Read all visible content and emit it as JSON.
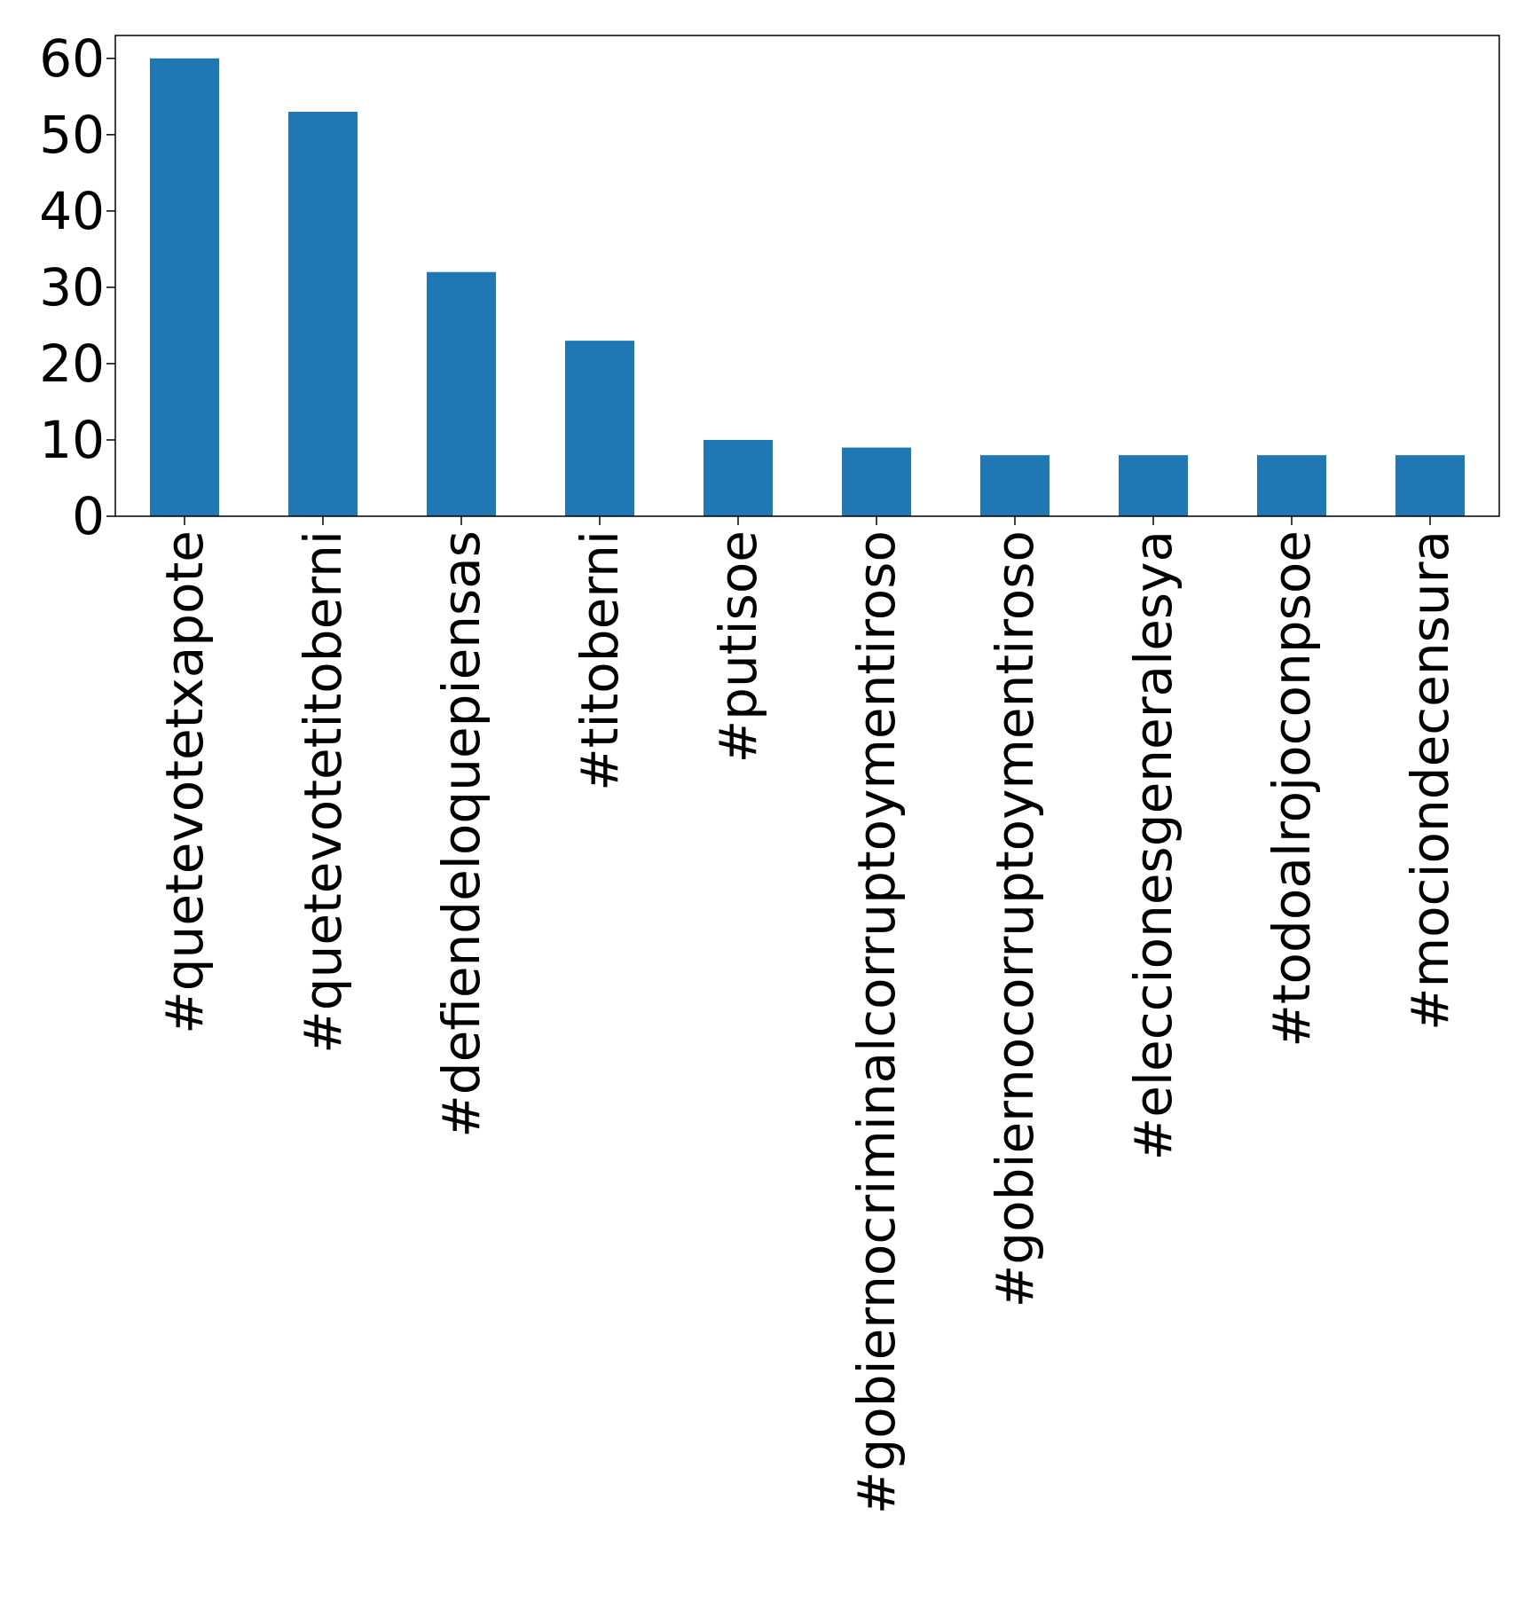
{
  "chart_data": {
    "type": "bar",
    "title": "",
    "xlabel": "",
    "ylabel": "",
    "categories": [
      "#quetevotetxapote",
      "#quetevotetitoberni",
      "#defiendeloquepiensas",
      "#titoberni",
      "#putisoe",
      "#gobiernocriminalcorruptoymentiroso",
      "#gobiernocorruptoymentiroso",
      "#eleccionesgeneralesya",
      "#todoalrojoconpsoe",
      "#mociondecensura"
    ],
    "values": [
      60,
      53,
      32,
      23,
      10,
      9,
      8,
      8,
      8,
      8
    ],
    "ylim": [
      0,
      63
    ],
    "yticks": [
      0,
      10,
      20,
      30,
      40,
      50,
      60
    ],
    "bar_color": "#1f77b4",
    "grid": false,
    "legend": "none"
  }
}
